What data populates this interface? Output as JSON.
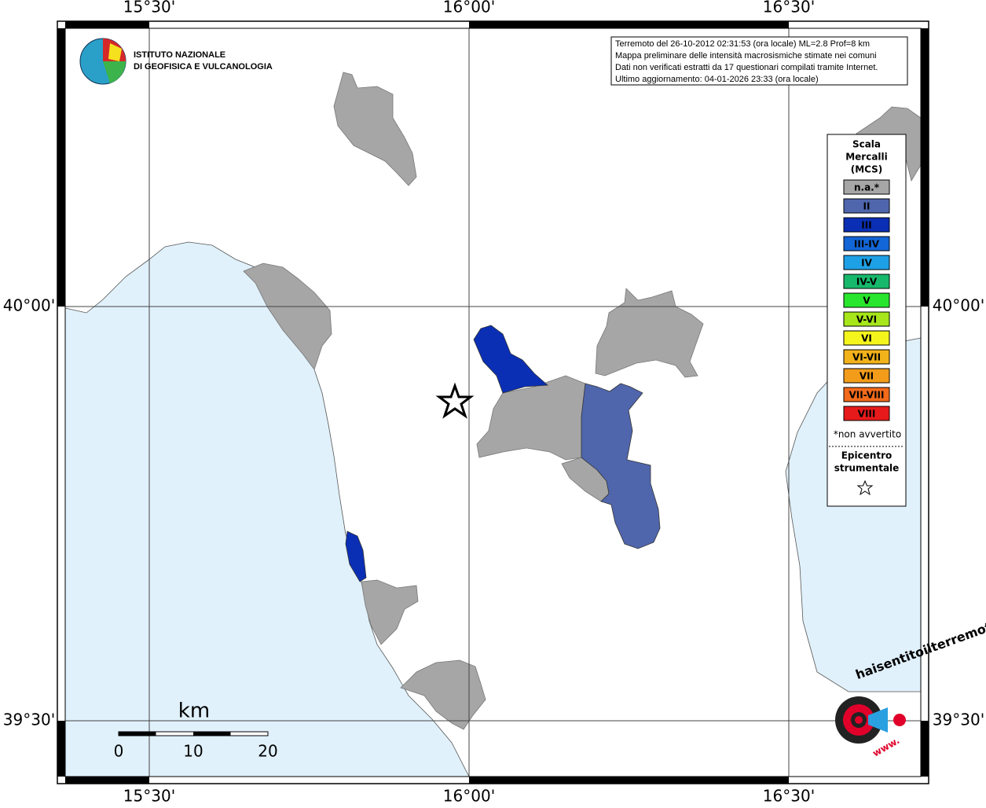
{
  "header": {
    "logo_text": [
      "ISTITUTO NAZIONALE",
      "DI GEOFISICA E VULCANOLOGIA"
    ]
  },
  "info_box": {
    "lines": [
      "Terremoto del 26-10-2012 02:31:53 (ora locale) ML=2.8 Prof=8 km",
      "Mappa preliminare delle intensità macrosismiche stimate nei comuni",
      "Dati non verificati estratti da 17 questionari compilati tramite Internet.",
      "Ultimo aggiornamento: 04-01-2026 23:33 (ora locale)"
    ]
  },
  "axes": {
    "top": [
      "15°30'",
      "16°00'",
      "16°30'"
    ],
    "bottom": [
      "15°30'",
      "16°00'",
      "16°30'"
    ],
    "left": [
      "40°00'",
      "39°30'"
    ],
    "right": [
      "40°00'",
      "39°30'"
    ]
  },
  "legend": {
    "title": [
      "Scala",
      "Mercalli",
      "(MCS)"
    ],
    "items": [
      {
        "label": "n.a.*",
        "color": "#a6a6a6"
      },
      {
        "label": "II",
        "color": "#4f66ad"
      },
      {
        "label": "III",
        "color": "#0a2fb5"
      },
      {
        "label": "III-IV",
        "color": "#1266d6"
      },
      {
        "label": "IV",
        "color": "#1ea0e6"
      },
      {
        "label": "IV-V",
        "color": "#17b86b"
      },
      {
        "label": "V",
        "color": "#28e62d"
      },
      {
        "label": "V-VI",
        "color": "#a6e61a"
      },
      {
        "label": "VI",
        "color": "#f5f51e"
      },
      {
        "label": "VI-VII",
        "color": "#f2b21a"
      },
      {
        "label": "VII",
        "color": "#f29c1a"
      },
      {
        "label": "VII-VIII",
        "color": "#f26a1a"
      },
      {
        "label": "VIII",
        "color": "#e61a1a"
      }
    ],
    "note": "*non avvertito",
    "epicenter": [
      "Epicentro",
      "strumentale"
    ]
  },
  "scale_bar": {
    "unit": "km",
    "labels": [
      "0",
      "10",
      "20"
    ]
  },
  "badge": {
    "text": "haisentitoilterremoto.it",
    "prefix": "www."
  }
}
